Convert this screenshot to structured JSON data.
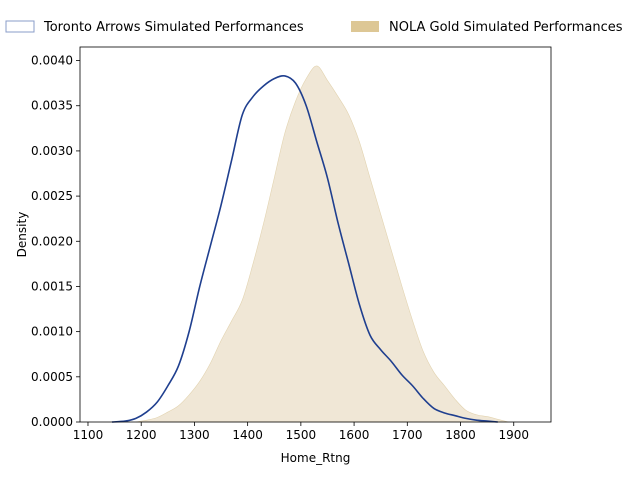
{
  "chart_data": {
    "type": "area",
    "title": "",
    "xlabel": "Home_Rtng",
    "ylabel": "Density",
    "xlim": [
      1085,
      1970
    ],
    "ylim": [
      0,
      0.00415
    ],
    "x_ticks": [
      1100,
      1200,
      1300,
      1400,
      1500,
      1600,
      1700,
      1800,
      1900
    ],
    "x_tick_labels": [
      "1100",
      "1200",
      "1300",
      "1400",
      "1500",
      "1600",
      "1700",
      "1800",
      "1900"
    ],
    "y_ticks": [
      0,
      0.0005,
      0.001,
      0.0015,
      0.002,
      0.0025,
      0.003,
      0.0035,
      0.004
    ],
    "y_tick_labels": [
      "0.0000",
      "0.0005",
      "0.0010",
      "0.0015",
      "0.0020",
      "0.0025",
      "0.0030",
      "0.0035",
      "0.0040"
    ],
    "grid": false,
    "legend_position": "top",
    "series": [
      {
        "name": "Toronto Arrows Simulated Performances",
        "style": "line",
        "color": "#1f3f8f",
        "legend_edge": "#8a9cc8",
        "points": [
          [
            1145,
            0.0
          ],
          [
            1170,
            1e-05
          ],
          [
            1190,
            4e-05
          ],
          [
            1210,
            0.00011
          ],
          [
            1230,
            0.00022
          ],
          [
            1250,
            0.0004
          ],
          [
            1270,
            0.00062
          ],
          [
            1290,
            0.001
          ],
          [
            1310,
            0.0015
          ],
          [
            1330,
            0.00195
          ],
          [
            1350,
            0.0024
          ],
          [
            1370,
            0.0029
          ],
          [
            1390,
            0.0034
          ],
          [
            1410,
            0.0036
          ],
          [
            1430,
            0.00372
          ],
          [
            1450,
            0.0038
          ],
          [
            1470,
            0.00383
          ],
          [
            1490,
            0.00375
          ],
          [
            1510,
            0.0035
          ],
          [
            1530,
            0.0031
          ],
          [
            1550,
            0.0027
          ],
          [
            1570,
            0.0022
          ],
          [
            1590,
            0.00175
          ],
          [
            1610,
            0.0013
          ],
          [
            1630,
            0.00096
          ],
          [
            1650,
            0.0008
          ],
          [
            1670,
            0.00067
          ],
          [
            1690,
            0.00052
          ],
          [
            1710,
            0.0004
          ],
          [
            1730,
            0.00026
          ],
          [
            1750,
            0.00015
          ],
          [
            1770,
            0.0001
          ],
          [
            1790,
            7e-05
          ],
          [
            1810,
            4e-05
          ],
          [
            1830,
            2e-05
          ],
          [
            1850,
            1e-05
          ],
          [
            1870,
            0.0
          ]
        ]
      },
      {
        "name": "NOLA Gold Simulated Performances",
        "style": "fill",
        "color": "#f0e7d6",
        "legend_fill": "#ddc795",
        "points": [
          [
            1190,
            0.0
          ],
          [
            1210,
            2e-05
          ],
          [
            1230,
            5e-05
          ],
          [
            1250,
            0.00011
          ],
          [
            1270,
            0.00018
          ],
          [
            1290,
            0.0003
          ],
          [
            1310,
            0.00045
          ],
          [
            1330,
            0.00065
          ],
          [
            1350,
            0.0009
          ],
          [
            1370,
            0.00112
          ],
          [
            1390,
            0.00135
          ],
          [
            1410,
            0.00175
          ],
          [
            1430,
            0.0022
          ],
          [
            1450,
            0.0027
          ],
          [
            1470,
            0.0032
          ],
          [
            1490,
            0.00355
          ],
          [
            1510,
            0.0038
          ],
          [
            1530,
            0.00394
          ],
          [
            1550,
            0.00378
          ],
          [
            1570,
            0.0036
          ],
          [
            1590,
            0.0034
          ],
          [
            1610,
            0.0031
          ],
          [
            1630,
            0.0027
          ],
          [
            1650,
            0.0023
          ],
          [
            1670,
            0.0019
          ],
          [
            1690,
            0.0015
          ],
          [
            1710,
            0.00112
          ],
          [
            1730,
            0.00078
          ],
          [
            1750,
            0.00055
          ],
          [
            1770,
            0.0004
          ],
          [
            1790,
            0.00025
          ],
          [
            1810,
            0.00013
          ],
          [
            1830,
            8e-05
          ],
          [
            1850,
            6e-05
          ],
          [
            1870,
            3e-05
          ],
          [
            1890,
            0.0
          ]
        ]
      }
    ]
  }
}
